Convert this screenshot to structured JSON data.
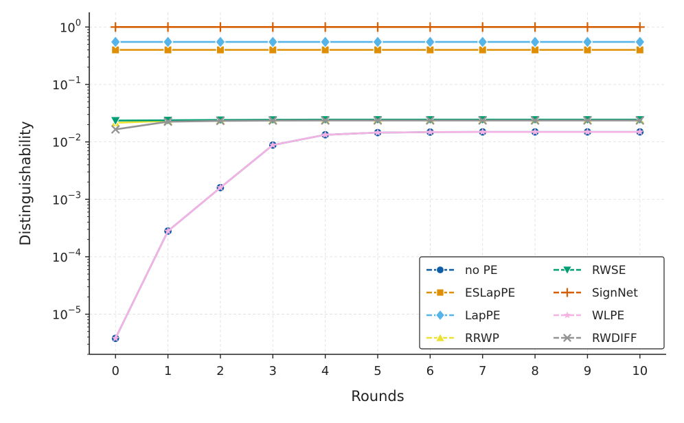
{
  "chart_data": {
    "type": "line",
    "xlabel": "Rounds",
    "ylabel": "Distinguishability",
    "yscale": "log",
    "xlim": [
      -0.5,
      10.5
    ],
    "ylim": [
      2e-06,
      1.8
    ],
    "x": [
      0,
      1,
      2,
      3,
      4,
      5,
      6,
      7,
      8,
      9,
      10
    ],
    "xticks": [
      "0",
      "1",
      "2",
      "3",
      "4",
      "5",
      "6",
      "7",
      "8",
      "9",
      "10"
    ],
    "yticks": [
      {
        "value": 1e-05,
        "base": "10",
        "exp": "−5"
      },
      {
        "value": 0.0001,
        "base": "10",
        "exp": "−4"
      },
      {
        "value": 0.001,
        "base": "10",
        "exp": "−3"
      },
      {
        "value": 0.01,
        "base": "10",
        "exp": "−2"
      },
      {
        "value": 0.1,
        "base": "10",
        "exp": "−1"
      },
      {
        "value": 1,
        "base": "10",
        "exp": "0"
      }
    ],
    "grid": true,
    "legend_position": "lower-right",
    "series": [
      {
        "name": "no PE",
        "color": "#0c5da5",
        "marker": "circle",
        "values": [
          3.8e-06,
          0.00028,
          0.0016,
          0.0088,
          0.0133,
          0.0145,
          0.0148,
          0.0149,
          0.0149,
          0.0149,
          0.0149
        ]
      },
      {
        "name": "ESLapPE",
        "color": "#de8f05",
        "marker": "square",
        "values": [
          0.4,
          0.4,
          0.4,
          0.4,
          0.4,
          0.4,
          0.4,
          0.4,
          0.4,
          0.4,
          0.4
        ]
      },
      {
        "name": "LapPE",
        "color": "#56b4e9",
        "marker": "diamond",
        "values": [
          0.55,
          0.55,
          0.55,
          0.55,
          0.55,
          0.55,
          0.55,
          0.55,
          0.55,
          0.55,
          0.55
        ]
      },
      {
        "name": "RRWP",
        "color": "#ece133",
        "marker": "triangle-up",
        "values": [
          0.0215,
          0.0232,
          0.0238,
          0.0241,
          0.0242,
          0.0242,
          0.0242,
          0.0242,
          0.0242,
          0.0242,
          0.0242
        ]
      },
      {
        "name": "RWSE",
        "color": "#029e73",
        "marker": "triangle-down",
        "values": [
          0.0235,
          0.0238,
          0.0241,
          0.0243,
          0.0244,
          0.0244,
          0.0244,
          0.0244,
          0.0244,
          0.0244,
          0.0244
        ]
      },
      {
        "name": "SignNet",
        "color": "#d55e00",
        "marker": "plus",
        "values": [
          1.0,
          1.0,
          1.0,
          1.0,
          1.0,
          1.0,
          1.0,
          1.0,
          1.0,
          1.0,
          1.0
        ]
      },
      {
        "name": "WLPE",
        "color": "#f5b3e3",
        "marker": "star",
        "values": [
          3.8e-06,
          0.00028,
          0.0016,
          0.0088,
          0.0133,
          0.0145,
          0.0148,
          0.0149,
          0.0149,
          0.0149,
          0.0149
        ]
      },
      {
        "name": "RWDIFF",
        "color": "#949494",
        "marker": "x",
        "values": [
          0.0165,
          0.0225,
          0.0232,
          0.0235,
          0.0236,
          0.0236,
          0.0236,
          0.0236,
          0.0236,
          0.0236,
          0.0236
        ]
      }
    ]
  }
}
